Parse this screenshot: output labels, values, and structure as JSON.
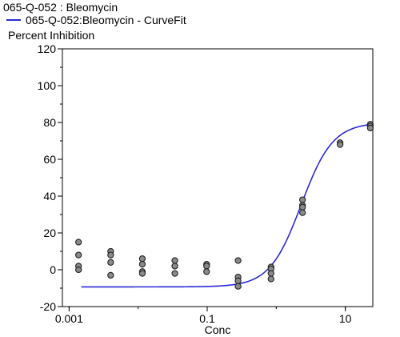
{
  "header": {
    "title": "065-Q-052  : Bleomycin"
  },
  "chart_data": {
    "type": "scatter",
    "xlabel": "Conc",
    "ylabel": "Percent Inhibition",
    "xscale": "log",
    "xlim": [
      0.0008,
      25
    ],
    "ylim": [
      -20,
      120
    ],
    "x_ticks": [
      0.001,
      0.1,
      10
    ],
    "x_tick_labels": [
      "0.001",
      "0.1",
      "10"
    ],
    "y_ticks": [
      -20,
      0,
      20,
      40,
      60,
      80,
      100,
      120
    ],
    "y_tick_labels": [
      "-20",
      "0",
      "20",
      "40",
      "60",
      "80",
      "100",
      "120"
    ],
    "grid": false,
    "legend": "top-left",
    "series": [
      {
        "name": "065-Q-052:Bleomycin - CurveFit",
        "kind": "line",
        "color": "#2a2ad6",
        "fit": {
          "bottom": -9.3,
          "top": 80,
          "ec50": 2.3,
          "hill": 1.9,
          "x_range": [
            0.0015,
            25
          ]
        }
      },
      {
        "kind": "points",
        "color": "#8a8a8a",
        "points": [
          [
            0.00137,
            15
          ],
          [
            0.00137,
            8
          ],
          [
            0.00137,
            2
          ],
          [
            0.00137,
            0
          ],
          [
            0.004,
            10
          ],
          [
            0.004,
            8
          ],
          [
            0.004,
            4
          ],
          [
            0.004,
            -3
          ],
          [
            0.0115,
            6
          ],
          [
            0.0115,
            3
          ],
          [
            0.0115,
            -1
          ],
          [
            0.0115,
            -2
          ],
          [
            0.034,
            5
          ],
          [
            0.034,
            2
          ],
          [
            0.034,
            -2
          ],
          [
            0.098,
            3
          ],
          [
            0.098,
            2
          ],
          [
            0.098,
            -1
          ],
          [
            0.28,
            5
          ],
          [
            0.28,
            -4
          ],
          [
            0.28,
            -6
          ],
          [
            0.28,
            -9
          ],
          [
            0.84,
            1.5
          ],
          [
            0.84,
            0.5
          ],
          [
            0.84,
            -2
          ],
          [
            0.84,
            -5
          ],
          [
            2.4,
            38
          ],
          [
            2.4,
            35
          ],
          [
            2.4,
            34
          ],
          [
            2.4,
            31
          ],
          [
            8.4,
            69
          ],
          [
            8.4,
            68
          ],
          [
            23,
            79
          ],
          [
            23,
            78
          ],
          [
            23,
            77
          ]
        ]
      }
    ]
  }
}
